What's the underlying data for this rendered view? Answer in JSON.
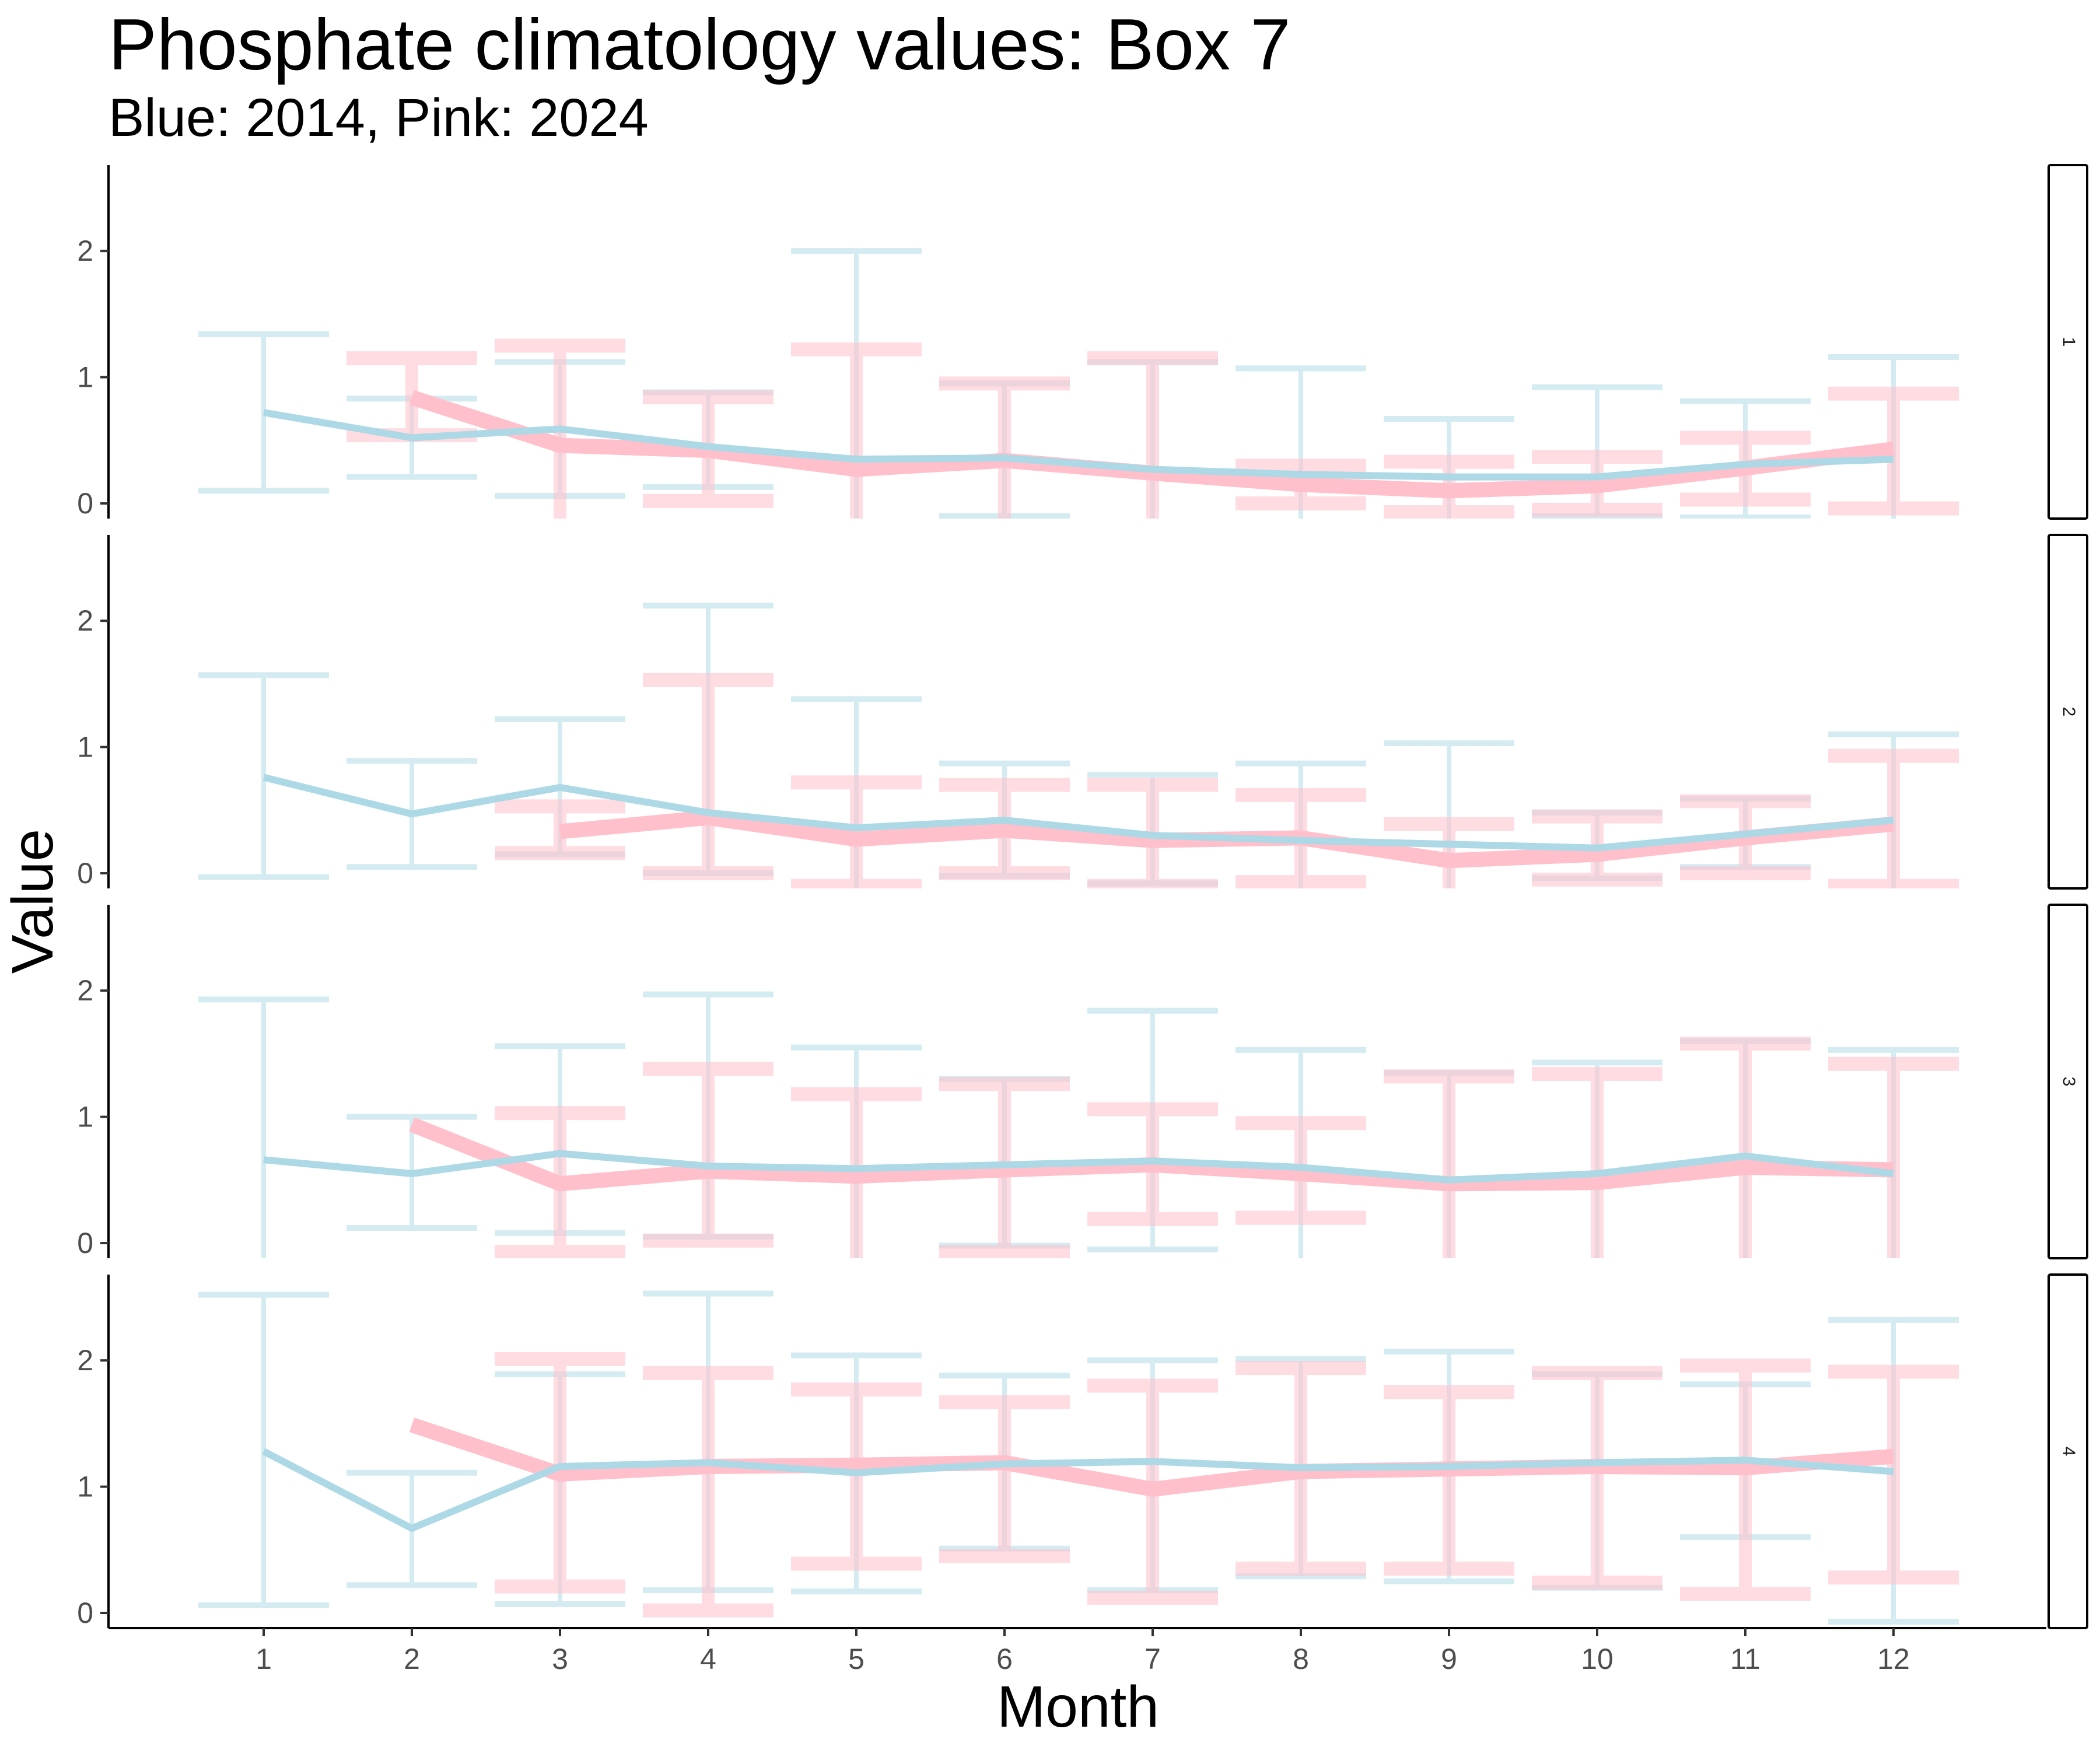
{
  "chart_data": {
    "type": "line",
    "title": "Phosphate climatology values: Box 7",
    "subtitle": "Blue: 2014, Pink: 2024",
    "xlabel": "Month",
    "ylabel": "Value",
    "x": [
      1,
      2,
      3,
      4,
      5,
      6,
      7,
      8,
      9,
      10,
      11,
      12
    ],
    "ylim": [
      -0.12,
      2.68
    ],
    "yticks": [
      0,
      1,
      2
    ],
    "colors": {
      "2014": "#ADD8E6",
      "2024": "#FFC0CB"
    },
    "panels": [
      {
        "label": "1",
        "series": [
          {
            "key": "2014",
            "mean": [
              0.72,
              0.52,
              0.59,
              0.45,
              0.35,
              0.36,
              0.27,
              0.23,
              0.21,
              0.21,
              0.31,
              0.35
            ],
            "lower": [
              0.1,
              0.21,
              0.06,
              0.13,
              -0.2,
              -0.1,
              -0.2,
              -0.2,
              -0.2,
              -0.1,
              -0.11,
              -0.2
            ],
            "upper": [
              1.34,
              0.83,
              1.12,
              0.88,
              2.0,
              0.95,
              1.12,
              1.07,
              0.67,
              0.92,
              0.81,
              1.16
            ]
          },
          {
            "key": "2024",
            "mean": [
              null,
              0.84,
              0.46,
              0.42,
              0.27,
              0.34,
              0.24,
              0.15,
              0.1,
              0.14,
              0.28,
              0.43
            ],
            "lower": [
              null,
              0.54,
              -0.2,
              0.02,
              -0.2,
              -0.2,
              -0.2,
              0.0,
              -0.07,
              -0.05,
              0.03,
              -0.04
            ],
            "upper": [
              null,
              1.15,
              1.25,
              0.84,
              1.22,
              0.95,
              1.15,
              0.3,
              0.33,
              0.37,
              0.52,
              0.87
            ]
          }
        ]
      },
      {
        "label": "2",
        "series": [
          {
            "key": "2014",
            "mean": [
              0.76,
              0.47,
              0.68,
              0.48,
              0.36,
              0.42,
              0.3,
              0.26,
              0.23,
              0.2,
              0.31,
              0.42
            ],
            "lower": [
              -0.03,
              0.05,
              0.15,
              0.0,
              -0.2,
              -0.02,
              -0.08,
              -0.2,
              -0.2,
              -0.04,
              0.05,
              -0.2
            ],
            "upper": [
              1.57,
              0.89,
              1.22,
              2.12,
              1.38,
              0.87,
              0.78,
              0.87,
              1.03,
              0.48,
              0.59,
              1.1
            ]
          },
          {
            "key": "2024",
            "mean": [
              null,
              null,
              0.33,
              0.44,
              0.27,
              0.34,
              0.26,
              0.28,
              0.1,
              0.15,
              0.28,
              0.39
            ],
            "lower": [
              null,
              null,
              0.16,
              0.0,
              -0.1,
              0.0,
              -0.1,
              -0.07,
              -0.2,
              -0.05,
              0.0,
              -0.1
            ],
            "upper": [
              null,
              null,
              0.53,
              1.53,
              0.72,
              0.7,
              0.7,
              0.62,
              0.39,
              0.45,
              0.57,
              0.93
            ]
          }
        ]
      },
      {
        "label": "3",
        "series": [
          {
            "key": "2014",
            "mean": [
              0.66,
              0.55,
              0.71,
              0.61,
              0.59,
              0.62,
              0.65,
              0.6,
              0.5,
              0.55,
              0.69,
              0.55
            ],
            "lower": [
              -0.2,
              0.12,
              0.08,
              0.05,
              -0.2,
              -0.02,
              -0.05,
              -0.2,
              -0.2,
              -0.2,
              -0.2,
              -0.2
            ],
            "upper": [
              1.93,
              1.0,
              1.56,
              1.97,
              1.55,
              1.3,
              1.84,
              1.53,
              1.35,
              1.43,
              1.6,
              1.53
            ]
          },
          {
            "key": "2024",
            "mean": [
              null,
              0.94,
              0.47,
              0.57,
              0.53,
              0.58,
              0.62,
              0.55,
              0.47,
              0.48,
              0.6,
              0.58
            ],
            "lower": [
              null,
              null,
              -0.07,
              0.02,
              -0.2,
              -0.07,
              0.19,
              0.2,
              -0.2,
              -0.2,
              -0.2,
              -0.2
            ],
            "upper": [
              null,
              null,
              1.03,
              1.38,
              1.18,
              1.26,
              1.06,
              0.95,
              1.32,
              1.34,
              1.58,
              1.42
            ]
          }
        ]
      },
      {
        "label": "4",
        "series": [
          {
            "key": "2014",
            "mean": [
              1.28,
              0.67,
              1.16,
              1.19,
              1.11,
              1.18,
              1.2,
              1.15,
              1.16,
              1.19,
              1.21,
              1.12
            ],
            "lower": [
              0.06,
              0.22,
              0.07,
              0.18,
              0.17,
              0.51,
              0.18,
              0.29,
              0.25,
              0.2,
              0.6,
              -0.07
            ],
            "upper": [
              2.52,
              1.11,
              1.89,
              2.53,
              2.04,
              1.88,
              2.0,
              2.01,
              2.07,
              1.89,
              1.81,
              2.32
            ]
          },
          {
            "key": "2024",
            "mean": [
              null,
              1.49,
              1.1,
              1.16,
              1.17,
              1.19,
              0.98,
              1.12,
              1.14,
              1.16,
              1.15,
              1.24
            ]
          },
          {
            "key": "2024-errorbars",
            "lower": [
              null,
              null,
              0.21,
              0.02,
              0.39,
              0.45,
              0.12,
              0.35,
              0.35,
              0.24,
              0.15,
              0.28
            ],
            "upper": [
              null,
              null,
              2.01,
              1.9,
              1.77,
              1.67,
              1.8,
              1.94,
              1.75,
              1.9,
              1.96,
              1.91
            ]
          }
        ]
      }
    ]
  }
}
